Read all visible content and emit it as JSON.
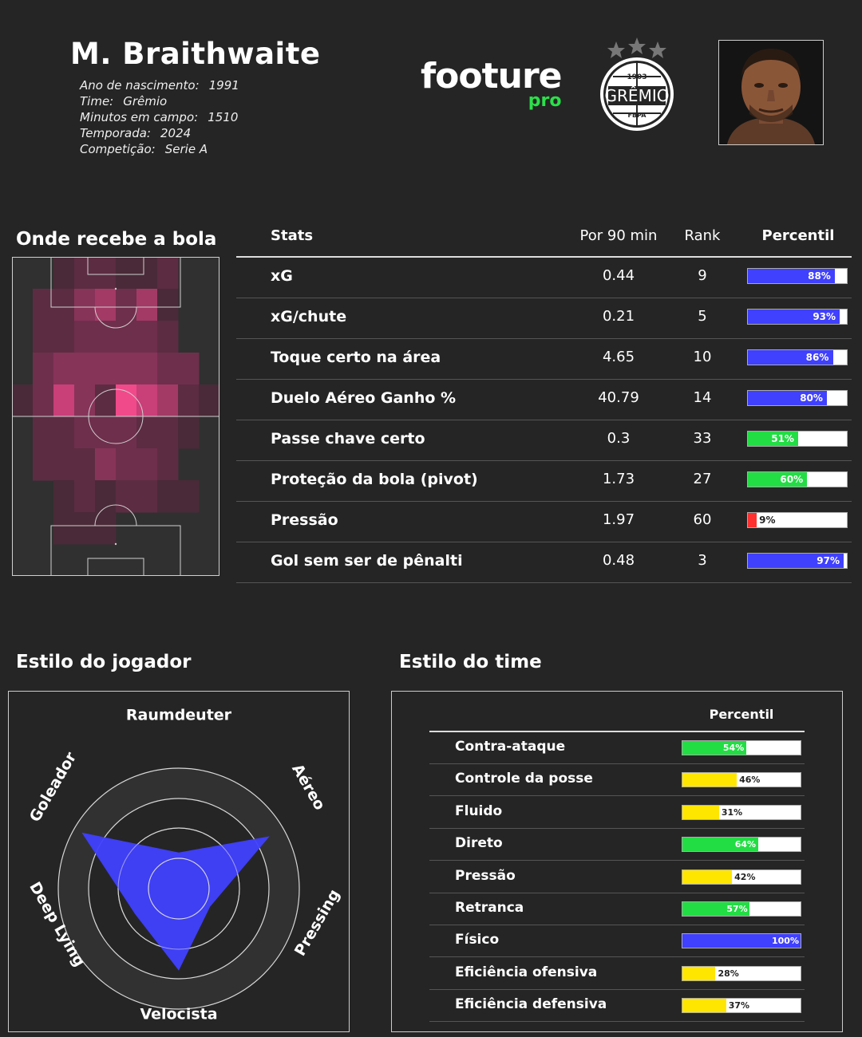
{
  "player": {
    "name": "M. Braithwaite",
    "info": [
      {
        "label": "Ano de nascimento:",
        "value": "1991"
      },
      {
        "label": "Time:",
        "value": "Grêmio"
      },
      {
        "label": "Minutos em campo:",
        "value": "1510"
      },
      {
        "label": "Temporada:",
        "value": "2024"
      },
      {
        "label": "Competição:",
        "value": "Serie A"
      }
    ]
  },
  "brand": {
    "name": "footure",
    "sub": "pro",
    "accent": "#2be04a"
  },
  "club_crest": {
    "year": "1903",
    "name": "GRÊMIO",
    "abbr": "FBPA",
    "icon": "gremio-crest-icon"
  },
  "photo": {
    "icon": "player-photo"
  },
  "sections": {
    "heatmap_title": "Onde recebe a bola",
    "player_style_title": "Estilo do jogador",
    "team_style_title": "Estilo do time"
  },
  "chart_data": [
    {
      "type": "heatmap",
      "title": "Onde recebe a bola",
      "cols": 10,
      "rows": 10,
      "intensity": [
        [
          0,
          0,
          1,
          2,
          2,
          1,
          1,
          2,
          0,
          0
        ],
        [
          0,
          2,
          2,
          4,
          5,
          3,
          5,
          1,
          0,
          0
        ],
        [
          0,
          2,
          2,
          3,
          3,
          3,
          3,
          2,
          0,
          0
        ],
        [
          0,
          3,
          4,
          4,
          4,
          4,
          4,
          3,
          3,
          0
        ],
        [
          1,
          3,
          6,
          4,
          2,
          7,
          6,
          5,
          2,
          1
        ],
        [
          0,
          2,
          2,
          3,
          3,
          3,
          2,
          2,
          1,
          0
        ],
        [
          0,
          2,
          2,
          2,
          4,
          3,
          3,
          2,
          0,
          0
        ],
        [
          0,
          0,
          1,
          2,
          1,
          2,
          2,
          1,
          1,
          0
        ],
        [
          0,
          0,
          1,
          1,
          1,
          0,
          0,
          0,
          0,
          0
        ],
        [
          0,
          0,
          0,
          0,
          0,
          0,
          0,
          0,
          0,
          0
        ]
      ]
    },
    {
      "type": "table",
      "title": "",
      "columns": [
        "Stats",
        "Por 90 min",
        "Rank",
        "Percentil"
      ],
      "rows": [
        {
          "stat": "xG",
          "per90": "0.44",
          "rank": "9",
          "pct": 88,
          "pct_label": "88%",
          "color": "#4040ff"
        },
        {
          "stat": "xG/chute",
          "per90": "0.21",
          "rank": "5",
          "pct": 93,
          "pct_label": "93%",
          "color": "#4040ff"
        },
        {
          "stat": "Toque certo na área",
          "per90": "4.65",
          "rank": "10",
          "pct": 86,
          "pct_label": "86%",
          "color": "#4040ff"
        },
        {
          "stat": "Duelo Aéreo Ganho %",
          "per90": "40.79",
          "rank": "14",
          "pct": 80,
          "pct_label": "80%",
          "color": "#4040ff"
        },
        {
          "stat": "Passe chave certo",
          "per90": "0.3",
          "rank": "33",
          "pct": 51,
          "pct_label": "51%",
          "color": "#22dd44"
        },
        {
          "stat": "Proteção da bola (pivot)",
          "per90": "1.73",
          "rank": "27",
          "pct": 60,
          "pct_label": "60%",
          "color": "#22dd44"
        },
        {
          "stat": "Pressão",
          "per90": "1.97",
          "rank": "60",
          "pct": 9,
          "pct_label": "9%",
          "color": "#ff3030"
        },
        {
          "stat": "Gol sem ser de pênalti",
          "per90": "0.48",
          "rank": "3",
          "pct": 97,
          "pct_label": "97%",
          "color": "#4040ff"
        }
      ]
    },
    {
      "type": "radar",
      "title": "Estilo do jogador",
      "axes": [
        {
          "name": "Raumdeuter",
          "value": 0.3
        },
        {
          "name": "Aéreo",
          "value": 0.87
        },
        {
          "name": "Pressing",
          "value": 0.3
        },
        {
          "name": "Velocista",
          "value": 0.68
        },
        {
          "name": "Deep Lying",
          "value": 0.42
        },
        {
          "name": "Goleador",
          "value": 0.93
        }
      ],
      "fill": "#4040ff"
    },
    {
      "type": "bar",
      "title": "Estilo do time",
      "header": "Percentil",
      "rows": [
        {
          "name": "Contra-ataque",
          "pct": 54,
          "pct_label": "54%",
          "color": "#22dd44"
        },
        {
          "name": "Controle da posse",
          "pct": 46,
          "pct_label": "46%",
          "color": "#ffe600"
        },
        {
          "name": "Fluido",
          "pct": 31,
          "pct_label": "31%",
          "color": "#ffe600"
        },
        {
          "name": "Direto",
          "pct": 64,
          "pct_label": "64%",
          "color": "#22dd44"
        },
        {
          "name": "Pressão",
          "pct": 42,
          "pct_label": "42%",
          "color": "#ffe600"
        },
        {
          "name": "Retranca",
          "pct": 57,
          "pct_label": "57%",
          "color": "#22dd44"
        },
        {
          "name": "Físico",
          "pct": 100,
          "pct_label": "100%",
          "color": "#4040ff"
        },
        {
          "name": "Eficiência ofensiva",
          "pct": 28,
          "pct_label": "28%",
          "color": "#ffe600"
        },
        {
          "name": "Eficiência defensiva",
          "pct": 37,
          "pct_label": "37%",
          "color": "#ffe600"
        }
      ]
    }
  ]
}
